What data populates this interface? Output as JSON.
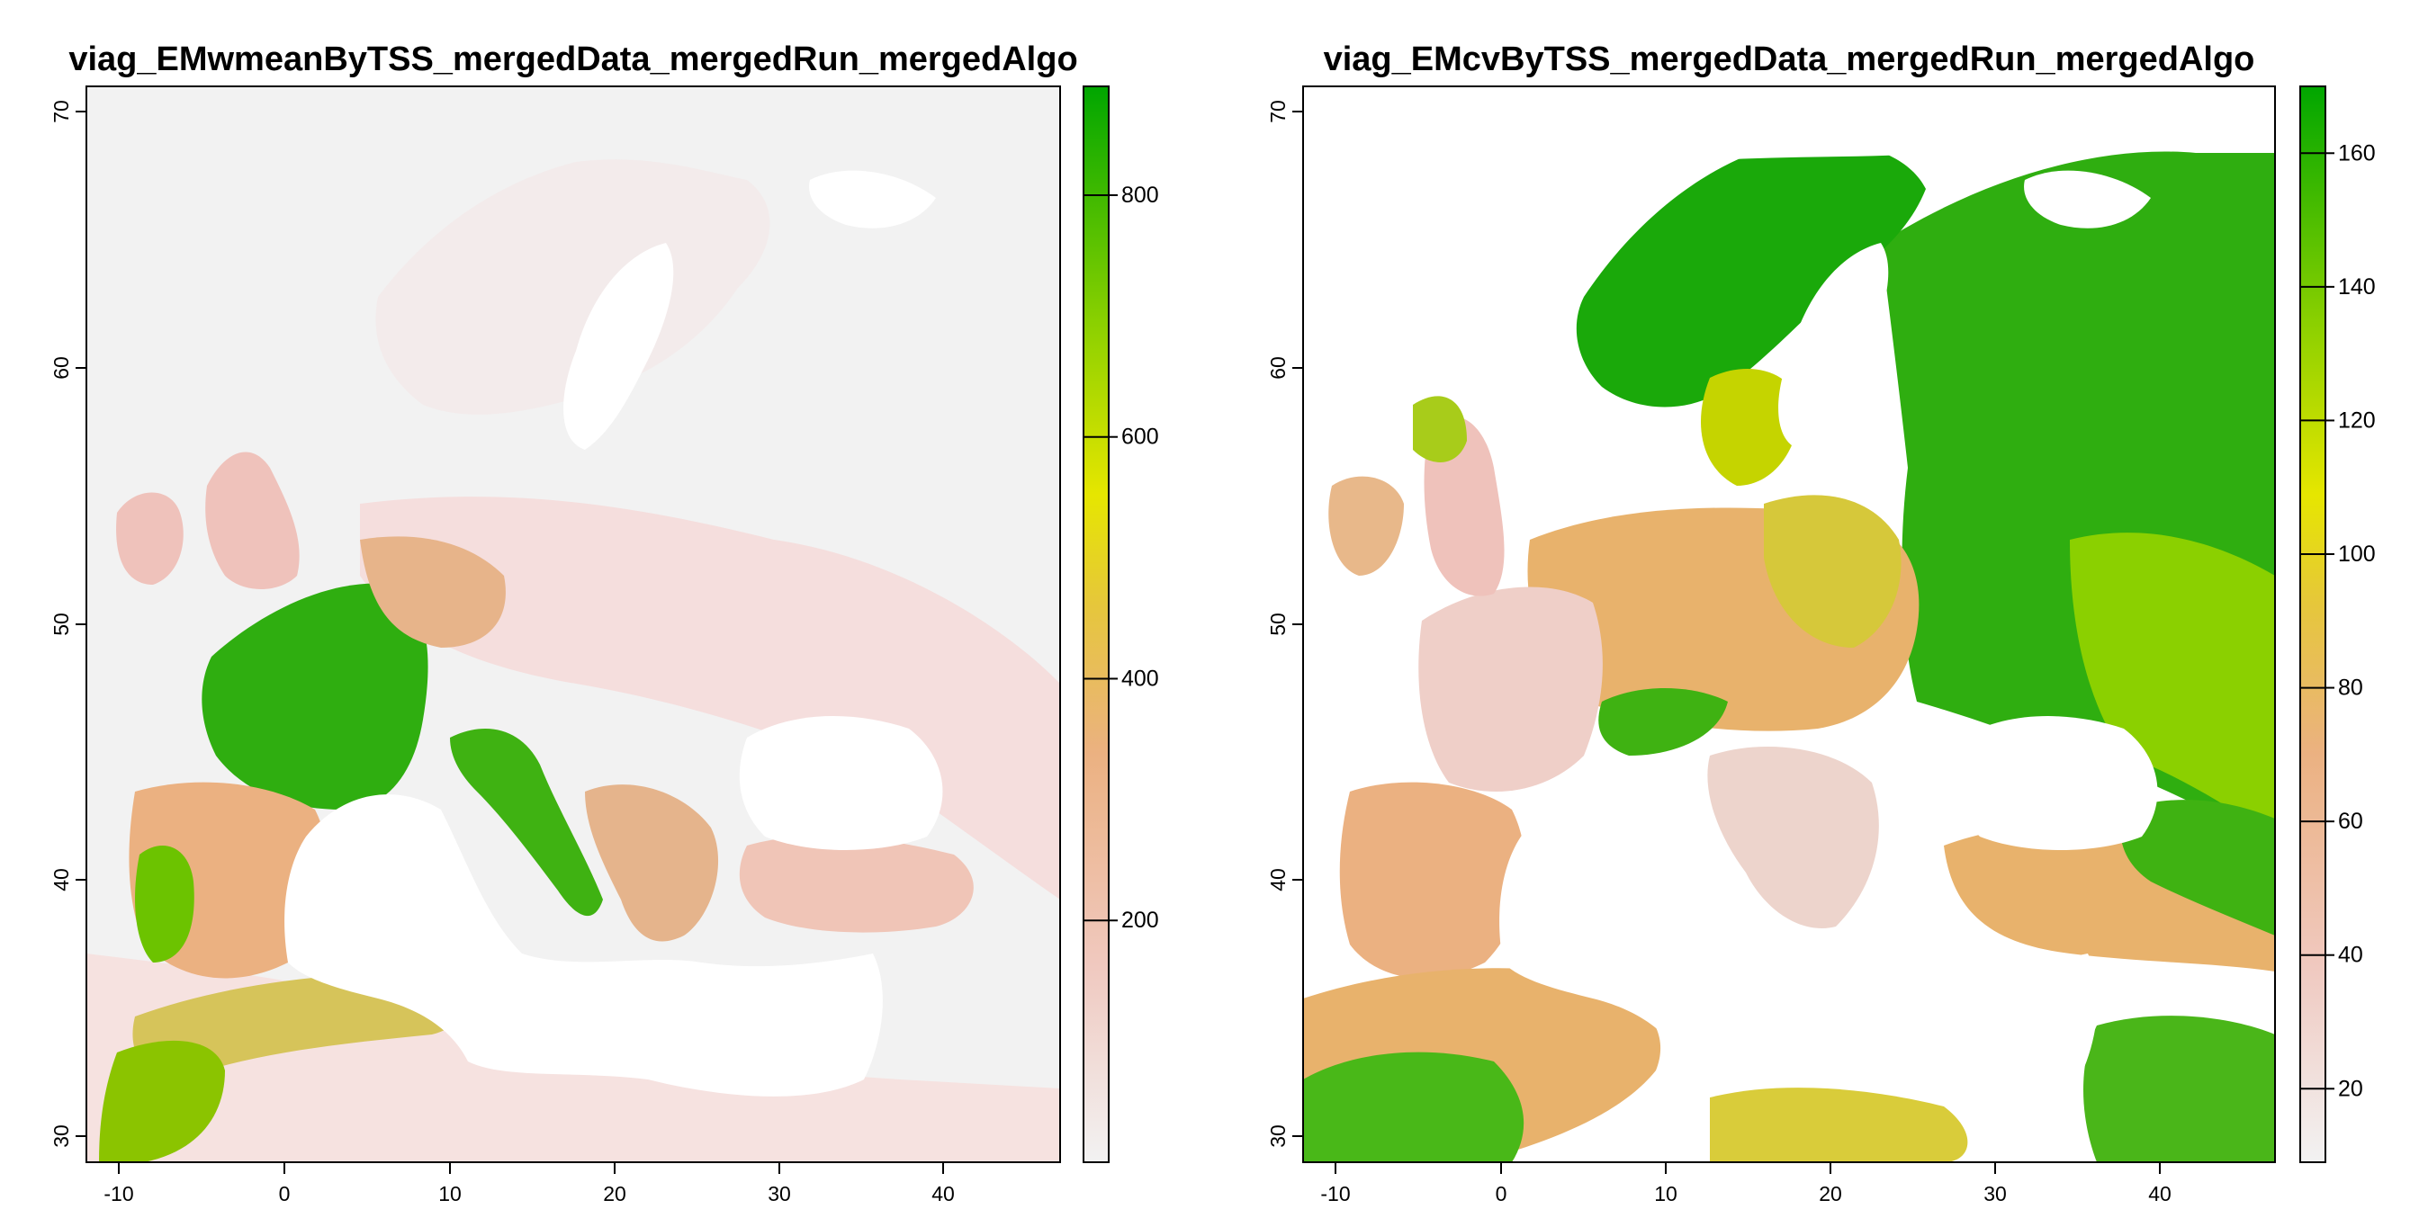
{
  "panels": [
    {
      "title": "viag_EMwmeanByTSS_mergedData_mergedRun_mergedAlgo",
      "x_ticks": [
        "-10",
        "0",
        "10",
        "20",
        "30",
        "40"
      ],
      "y_ticks": [
        "30",
        "40",
        "50",
        "60",
        "70"
      ],
      "colorbar": {
        "range": [
          0,
          890
        ],
        "ticks": [
          {
            "value": 200,
            "label": "200"
          },
          {
            "value": 400,
            "label": "400"
          },
          {
            "value": 600,
            "label": "600"
          },
          {
            "value": 800,
            "label": "800"
          }
        ]
      }
    },
    {
      "title": "viag_EMcvByTSS_mergedData_mergedRun_mergedAlgo",
      "x_ticks": [
        "-10",
        "0",
        "10",
        "20",
        "30",
        "40"
      ],
      "y_ticks": [
        "30",
        "40",
        "50",
        "60",
        "70"
      ],
      "colorbar": {
        "range": [
          9,
          170
        ],
        "ticks": [
          {
            "value": 20,
            "label": "20"
          },
          {
            "value": 40,
            "label": "40"
          },
          {
            "value": 60,
            "label": "60"
          },
          {
            "value": 80,
            "label": "80"
          },
          {
            "value": 100,
            "label": "100"
          },
          {
            "value": 120,
            "label": "120"
          },
          {
            "value": 140,
            "label": "140"
          },
          {
            "value": 160,
            "label": "160"
          }
        ]
      }
    }
  ],
  "map_extent": {
    "lon": [
      -11,
      48
    ],
    "lat": [
      29,
      71
    ]
  },
  "palette": [
    "#f2f2f2",
    "#f0c9c0",
    "#ebb181",
    "#e6c73a",
    "#e6e600",
    "#8bd000",
    "#00a600"
  ]
}
